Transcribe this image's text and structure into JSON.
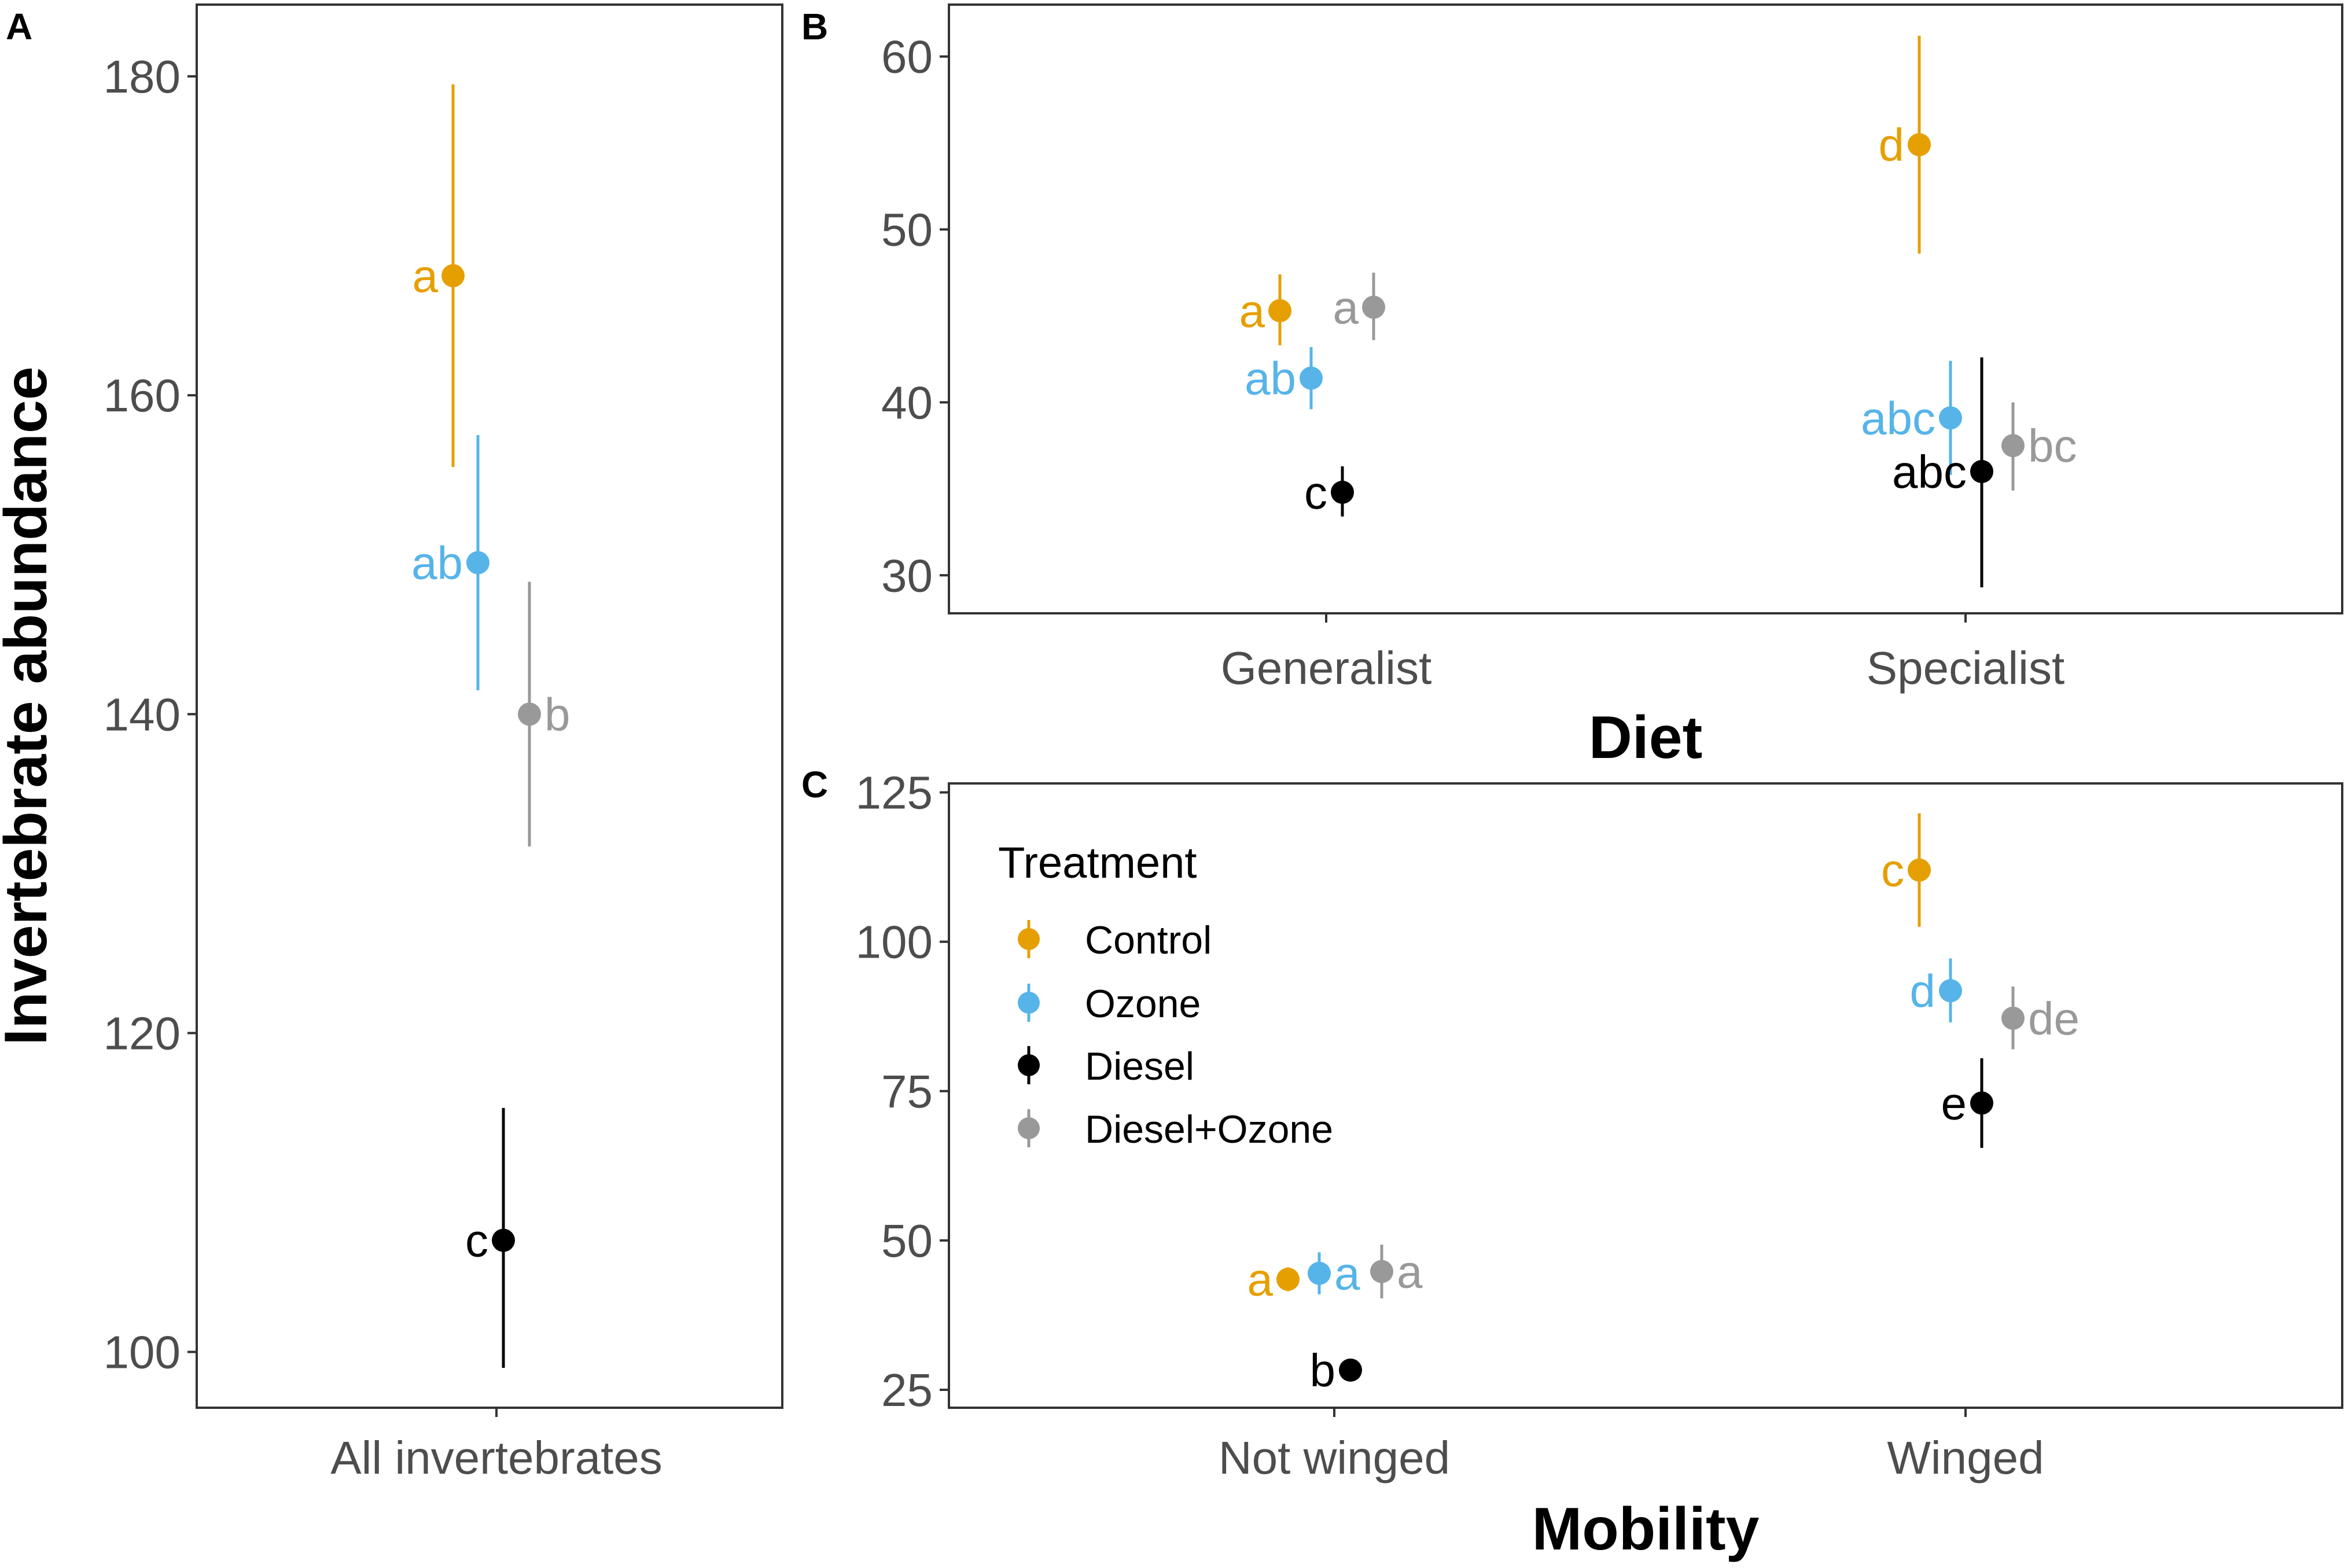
{
  "colors": {
    "Control": "#E69F00",
    "Ozone": "#56B4E9",
    "Diesel": "#000000",
    "Diesel+Ozone": "#999999"
  },
  "treatments": [
    "Control",
    "Ozone",
    "Diesel",
    "Diesel+Ozone"
  ],
  "legend": {
    "title": "Treatment",
    "items": [
      "Control",
      "Ozone",
      "Diesel",
      "Diesel+Ozone"
    ]
  },
  "chart_data": [
    {
      "id": "A",
      "panel_label": "A",
      "type": "scatter",
      "subtype": "point-errorbar",
      "title": "",
      "xlabel": "",
      "ylabel": "Invertebrate abundance",
      "ylim": [
        96.5,
        184.5
      ],
      "yticks": [
        100,
        120,
        140,
        160,
        180
      ],
      "categories": [
        "All invertebrates"
      ],
      "series": [
        {
          "name": "Control",
          "values": [
            167.5
          ],
          "lower": [
            155.5
          ],
          "upper": [
            179.5
          ],
          "letters": [
            "a"
          ],
          "label_side": [
            "left"
          ]
        },
        {
          "name": "Ozone",
          "values": [
            149.5
          ],
          "lower": [
            141.5
          ],
          "upper": [
            157.5
          ],
          "letters": [
            "ab"
          ],
          "label_side": [
            "left"
          ]
        },
        {
          "name": "Diesel",
          "values": [
            107.0
          ],
          "lower": [
            99.0
          ],
          "upper": [
            115.3
          ],
          "letters": [
            "c"
          ],
          "label_side": [
            "left"
          ]
        },
        {
          "name": "Diesel+Ozone",
          "values": [
            140.0
          ],
          "lower": [
            131.7
          ],
          "upper": [
            148.3
          ],
          "letters": [
            "b"
          ],
          "label_side": [
            "right"
          ]
        }
      ]
    },
    {
      "id": "B",
      "panel_label": "B",
      "type": "scatter",
      "subtype": "point-errorbar",
      "title": "",
      "xlabel": "Diet",
      "ylabel": "",
      "ylim": [
        27.8,
        63
      ],
      "yticks": [
        30,
        40,
        50,
        60
      ],
      "categories": [
        "Generalist",
        "Specialist"
      ],
      "series": [
        {
          "name": "Control",
          "values": [
            45.3,
            54.9
          ],
          "lower": [
            43.3,
            48.6
          ],
          "upper": [
            47.4,
            61.2
          ],
          "letters": [
            "a",
            "d"
          ],
          "label_side": [
            "left",
            "left"
          ]
        },
        {
          "name": "Ozone",
          "values": [
            41.4,
            39.1
          ],
          "lower": [
            39.6,
            35.8
          ],
          "upper": [
            43.2,
            42.4
          ],
          "letters": [
            "ab",
            "abc"
          ],
          "label_side": [
            "left",
            "left"
          ]
        },
        {
          "name": "Diesel",
          "values": [
            34.8,
            36.0
          ],
          "lower": [
            33.4,
            29.3
          ],
          "upper": [
            36.3,
            42.6
          ],
          "letters": [
            "c",
            "abc"
          ],
          "label_side": [
            "left",
            "left"
          ]
        },
        {
          "name": "Diesel+Ozone",
          "values": [
            45.5,
            37.5
          ],
          "lower": [
            43.6,
            34.9
          ],
          "upper": [
            47.5,
            40.0
          ],
          "letters": [
            "a",
            "bc"
          ],
          "label_side": [
            "left",
            "right"
          ]
        }
      ]
    },
    {
      "id": "C",
      "panel_label": "C",
      "type": "scatter",
      "subtype": "point-errorbar",
      "title": "",
      "xlabel": "Mobility",
      "ylabel": "",
      "ylim": [
        22,
        126.5
      ],
      "yticks": [
        25,
        50,
        75,
        100,
        125
      ],
      "categories": [
        "Not winged",
        "Winged"
      ],
      "series": [
        {
          "name": "Control",
          "values": [
            43.5,
            112.0
          ],
          "lower": [
            41.5,
            102.5
          ],
          "upper": [
            45.5,
            121.5
          ],
          "letters": [
            "a",
            "c"
          ],
          "label_side": [
            "left",
            "left"
          ]
        },
        {
          "name": "Ozone",
          "values": [
            44.5,
            91.8
          ],
          "lower": [
            41.0,
            86.5
          ],
          "upper": [
            48.0,
            97.2
          ],
          "letters": [
            "a",
            "d"
          ],
          "label_side": [
            "right",
            "left"
          ]
        },
        {
          "name": "Diesel",
          "values": [
            28.3,
            73.0
          ],
          "lower": [
            27.3,
            65.5
          ],
          "upper": [
            29.3,
            80.5
          ],
          "letters": [
            "b",
            "e"
          ],
          "label_side": [
            "left",
            "left"
          ]
        },
        {
          "name": "Diesel+Ozone",
          "values": [
            44.8,
            87.2
          ],
          "lower": [
            40.3,
            82.0
          ],
          "upper": [
            49.3,
            92.5
          ],
          "letters": [
            "a",
            "de"
          ],
          "label_side": [
            "right",
            "right"
          ]
        }
      ]
    }
  ]
}
